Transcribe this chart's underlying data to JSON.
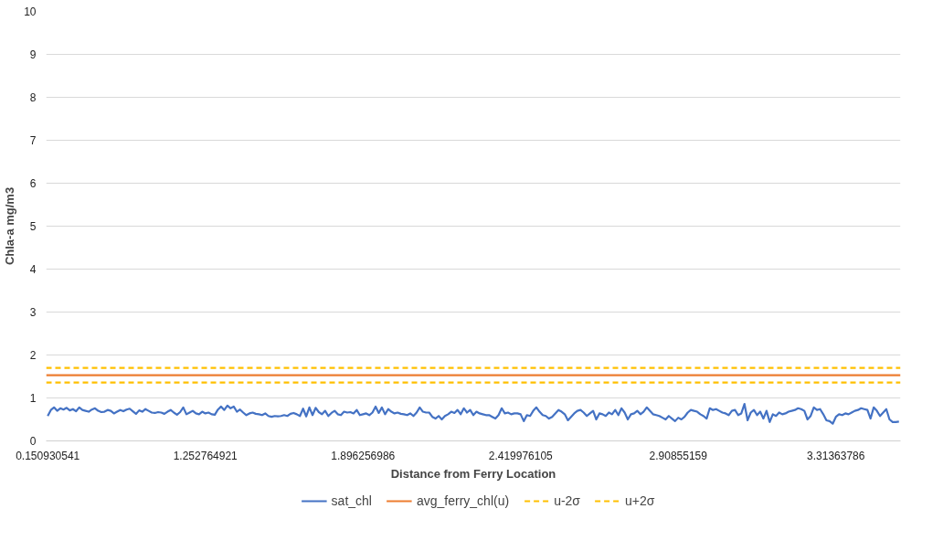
{
  "chart_data": {
    "type": "line",
    "xlabel": "Distance from Ferry Location",
    "ylabel": "Chla-a mg/m3",
    "categories": [
      "0.150930541",
      null,
      null,
      null,
      null,
      null,
      null,
      null,
      null,
      null,
      null,
      null,
      null,
      null,
      null,
      null,
      null,
      null,
      null,
      null,
      null,
      null,
      null,
      null,
      null,
      null,
      null,
      null,
      null,
      null,
      null,
      null,
      null,
      null,
      null,
      null,
      null,
      null,
      null,
      null,
      null,
      null,
      null,
      null,
      null,
      null,
      null,
      null,
      null,
      null,
      "1.252764921",
      null,
      null,
      null,
      null,
      null,
      null,
      null,
      null,
      null,
      null,
      null,
      null,
      null,
      null,
      null,
      null,
      null,
      null,
      null,
      null,
      null,
      null,
      null,
      null,
      null,
      null,
      null,
      null,
      null,
      null,
      null,
      null,
      null,
      null,
      null,
      null,
      null,
      null,
      null,
      null,
      null,
      null,
      null,
      null,
      null,
      null,
      null,
      null,
      null,
      "1.896256986",
      null,
      null,
      null,
      null,
      null,
      null,
      null,
      null,
      null,
      null,
      null,
      null,
      null,
      null,
      null,
      null,
      null,
      null,
      null,
      null,
      null,
      null,
      null,
      null,
      null,
      null,
      null,
      null,
      null,
      null,
      null,
      null,
      null,
      null,
      null,
      null,
      null,
      null,
      null,
      null,
      null,
      null,
      null,
      null,
      null,
      null,
      null,
      null,
      null,
      "2.419976105",
      null,
      null,
      null,
      null,
      null,
      null,
      null,
      null,
      null,
      null,
      null,
      null,
      null,
      null,
      null,
      null,
      null,
      null,
      null,
      null,
      null,
      null,
      null,
      null,
      null,
      null,
      null,
      null,
      null,
      null,
      null,
      null,
      null,
      null,
      null,
      null,
      null,
      null,
      null,
      null,
      null,
      null,
      null,
      null,
      null,
      null,
      null,
      null,
      null,
      "2.90855159",
      null,
      null,
      null,
      null,
      null,
      null,
      null,
      null,
      null,
      null,
      null,
      null,
      null,
      null,
      null,
      null,
      null,
      null,
      null,
      null,
      null,
      null,
      null,
      null,
      null,
      null,
      null,
      null,
      null,
      null,
      null,
      null,
      null,
      null,
      null,
      null,
      null,
      null,
      null,
      null,
      null,
      null,
      null,
      null,
      null,
      null,
      null,
      null,
      null,
      "3.31363786",
      null,
      null,
      null,
      null,
      null,
      null,
      null,
      null,
      null,
      null,
      null,
      null,
      null,
      null,
      null,
      null,
      null,
      null,
      null,
      null
    ],
    "series": [
      {
        "name": "sat_chl",
        "color": "#4472c4",
        "values": [
          0.58,
          0.72,
          0.78,
          0.7,
          0.76,
          0.73,
          0.77,
          0.71,
          0.74,
          0.69,
          0.78,
          0.72,
          0.7,
          0.68,
          0.73,
          0.76,
          0.7,
          0.67,
          0.68,
          0.72,
          0.7,
          0.64,
          0.68,
          0.72,
          0.69,
          0.73,
          0.75,
          0.69,
          0.63,
          0.71,
          0.68,
          0.74,
          0.7,
          0.66,
          0.65,
          0.67,
          0.66,
          0.63,
          0.68,
          0.72,
          0.66,
          0.61,
          0.67,
          0.78,
          0.62,
          0.66,
          0.7,
          0.64,
          0.62,
          0.68,
          0.64,
          0.66,
          0.62,
          0.61,
          0.73,
          0.8,
          0.72,
          0.82,
          0.76,
          0.8,
          0.68,
          0.73,
          0.66,
          0.6,
          0.64,
          0.66,
          0.63,
          0.62,
          0.6,
          0.64,
          0.58,
          0.56,
          0.58,
          0.57,
          0.58,
          0.6,
          0.58,
          0.63,
          0.65,
          0.62,
          0.58,
          0.75,
          0.57,
          0.78,
          0.6,
          0.77,
          0.67,
          0.62,
          0.7,
          0.58,
          0.65,
          0.7,
          0.62,
          0.6,
          0.68,
          0.66,
          0.67,
          0.64,
          0.72,
          0.6,
          0.62,
          0.64,
          0.6,
          0.66,
          0.8,
          0.65,
          0.78,
          0.62,
          0.74,
          0.68,
          0.64,
          0.66,
          0.63,
          0.62,
          0.6,
          0.64,
          0.58,
          0.66,
          0.78,
          0.68,
          0.66,
          0.66,
          0.56,
          0.52,
          0.58,
          0.5,
          0.58,
          0.62,
          0.68,
          0.65,
          0.72,
          0.62,
          0.76,
          0.66,
          0.72,
          0.6,
          0.68,
          0.64,
          0.62,
          0.6,
          0.6,
          0.56,
          0.52,
          0.6,
          0.76,
          0.64,
          0.66,
          0.62,
          0.64,
          0.64,
          0.62,
          0.46,
          0.6,
          0.58,
          0.7,
          0.78,
          0.68,
          0.6,
          0.58,
          0.52,
          0.56,
          0.64,
          0.72,
          0.68,
          0.62,
          0.48,
          0.56,
          0.64,
          0.7,
          0.72,
          0.66,
          0.58,
          0.64,
          0.7,
          0.5,
          0.64,
          0.62,
          0.58,
          0.66,
          0.62,
          0.72,
          0.6,
          0.76,
          0.66,
          0.5,
          0.62,
          0.64,
          0.7,
          0.62,
          0.68,
          0.78,
          0.7,
          0.62,
          0.6,
          0.58,
          0.54,
          0.5,
          0.58,
          0.52,
          0.46,
          0.54,
          0.5,
          0.56,
          0.66,
          0.72,
          0.7,
          0.68,
          0.62,
          0.58,
          0.52,
          0.76,
          0.72,
          0.74,
          0.7,
          0.66,
          0.64,
          0.6,
          0.7,
          0.72,
          0.6,
          0.64,
          0.86,
          0.48,
          0.66,
          0.72,
          0.6,
          0.68,
          0.52,
          0.7,
          0.44,
          0.62,
          0.58,
          0.66,
          0.62,
          0.64,
          0.68,
          0.7,
          0.72,
          0.76,
          0.74,
          0.7,
          0.5,
          0.58,
          0.78,
          0.72,
          0.74,
          0.62,
          0.48,
          0.46,
          0.4,
          0.56,
          0.62,
          0.6,
          0.64,
          0.62,
          0.66,
          0.7,
          0.72,
          0.76,
          0.74,
          0.72,
          0.52,
          0.78,
          0.7,
          0.58,
          0.66,
          0.74,
          0.5,
          0.44,
          0.44,
          0.45
        ]
      }
    ],
    "ref_lines": [
      {
        "axis": "y",
        "value": 1.53,
        "label": "avg_ferry_chl(u)",
        "color": "#ed7d31",
        "line_style": "solid"
      },
      {
        "axis": "y",
        "value": 1.36,
        "label": "u-2σ",
        "color": "#ffc000",
        "line_style": "dashed"
      },
      {
        "axis": "y",
        "value": 1.7,
        "label": "u+2σ",
        "color": "#ffc000",
        "line_style": "dashed"
      }
    ],
    "ylim": [
      0,
      10
    ],
    "yticks": [
      0,
      1,
      2,
      3,
      4,
      5,
      6,
      7,
      8,
      9,
      10
    ],
    "grid": "y",
    "legend": "bottom",
    "marker": "none",
    "line_style": "solid"
  }
}
